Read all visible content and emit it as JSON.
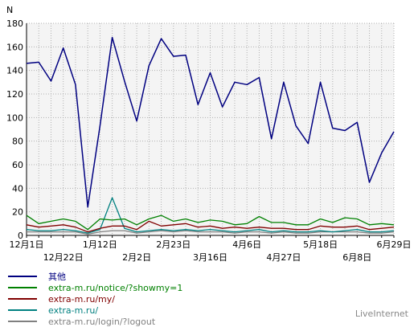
{
  "chart_data": {
    "type": "line",
    "ylabel": "N",
    "ylim": [
      0,
      180
    ],
    "yticks": [
      0,
      20,
      40,
      60,
      80,
      100,
      120,
      140,
      160,
      180
    ],
    "grid": true,
    "xtick_labels_upper": [
      "12月1日",
      "1月12日",
      "2月23日",
      "4月6日",
      "5月18日",
      "6月29日"
    ],
    "xtick_labels_lower": [
      "12月22日",
      "2月2日",
      "3月16日",
      "4月27日",
      "6月8日"
    ],
    "series": [
      {
        "name": "其他",
        "color": "#000080",
        "values": [
          146,
          147,
          131,
          159,
          128,
          24,
          93,
          168,
          131,
          97,
          144,
          167,
          152,
          153,
          111,
          138,
          109,
          130,
          128,
          134,
          82,
          130,
          93,
          78,
          130,
          91,
          89,
          96,
          45,
          70,
          88
        ]
      },
      {
        "name": "extra-m.ru/notice/?showmy=1",
        "color": "#008000",
        "values": [
          17,
          10,
          12,
          14,
          12,
          5,
          14,
          13,
          14,
          9,
          14,
          17,
          12,
          14,
          11,
          13,
          12,
          9,
          10,
          16,
          11,
          11,
          9,
          9,
          14,
          11,
          15,
          14,
          9,
          10,
          9
        ]
      },
      {
        "name": "extra-m.ru/my/",
        "color": "#800000",
        "values": [
          9,
          7,
          8,
          9,
          7,
          3,
          6,
          8,
          8,
          5,
          12,
          8,
          9,
          10,
          7,
          8,
          6,
          7,
          6,
          7,
          6,
          6,
          5,
          5,
          8,
          7,
          7,
          8,
          5,
          6,
          7
        ]
      },
      {
        "name": "extra-m.ru/",
        "color": "#008080",
        "values": [
          5,
          4,
          4,
          5,
          4,
          2,
          5,
          32,
          6,
          3,
          4,
          5,
          4,
          5,
          4,
          5,
          4,
          3,
          4,
          5,
          3,
          4,
          3,
          3,
          4,
          3,
          4,
          5,
          3,
          3,
          4
        ]
      },
      {
        "name": "extra-m.ru/login/?logout",
        "color": "#808080",
        "values": [
          3,
          3,
          3,
          3,
          3,
          1,
          3,
          4,
          4,
          2,
          3,
          4,
          3,
          4,
          3,
          3,
          3,
          2,
          3,
          3,
          2,
          3,
          2,
          2,
          3,
          3,
          3,
          3,
          2,
          2,
          3
        ]
      }
    ]
  },
  "brand": "LiveInternet"
}
